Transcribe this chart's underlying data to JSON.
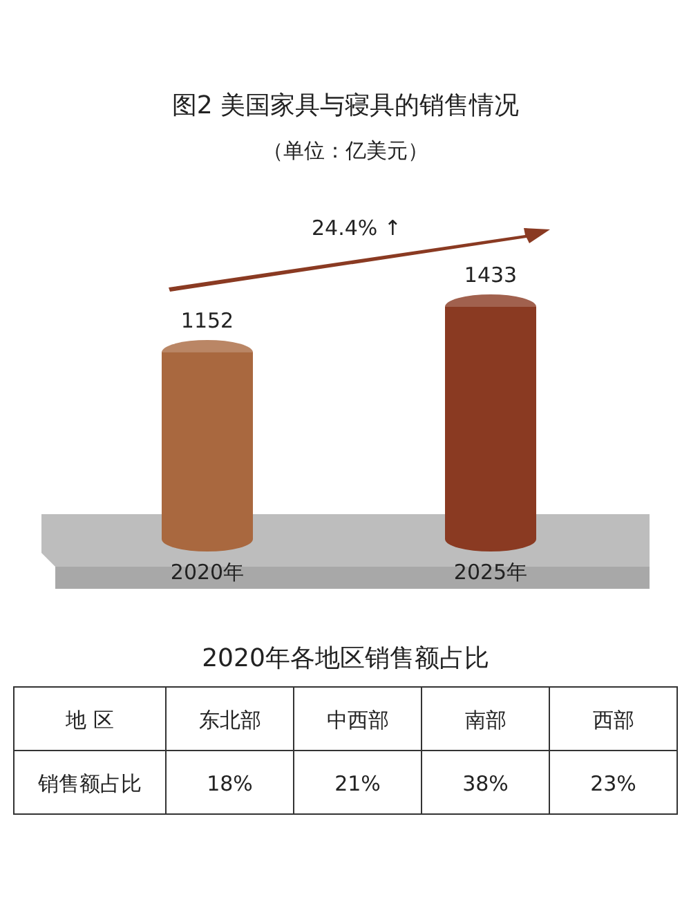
{
  "chart_data": [
    {
      "type": "bar",
      "title": "图2  美国家具与寝具的销售情况",
      "subtitle": "（单位：亿美元）",
      "categories": [
        "2020年",
        "2025年"
      ],
      "values": [
        1152,
        1433
      ],
      "colors": [
        "#a9683f",
        "#8a3a22"
      ],
      "data_labels": true,
      "annotations": [
        "24.4% ↑"
      ]
    },
    {
      "type": "other",
      "title": "2020年各地区销售额占比",
      "xlabel": "地 区",
      "ylabel": "销售额占比",
      "categories": [
        "东北部",
        "中西部",
        "南部",
        "西部"
      ],
      "values": [
        18,
        21,
        38,
        23
      ],
      "value_labels": [
        "18%",
        "21%",
        "38%",
        "23%"
      ]
    }
  ]
}
